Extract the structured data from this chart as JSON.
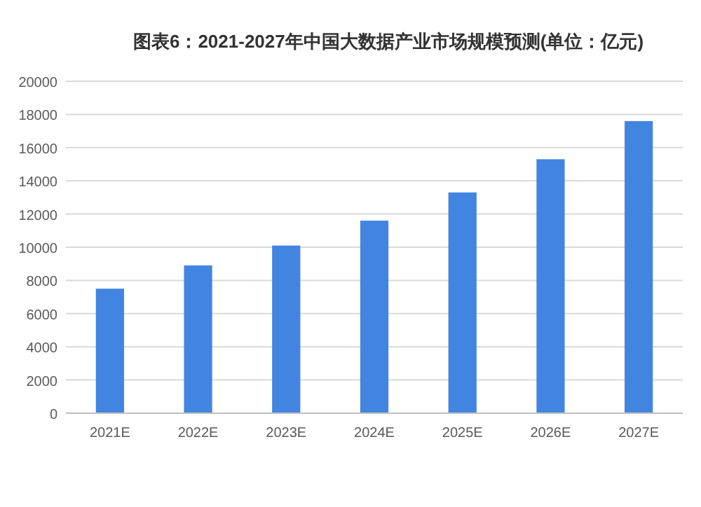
{
  "chart_data": {
    "type": "bar",
    "title": "图表6：2021-2027年中国大数据产业市场规模预测(单位：亿元)",
    "categories": [
      "2021E",
      "2022E",
      "2023E",
      "2024E",
      "2025E",
      "2026E",
      "2027E"
    ],
    "values": [
      7500,
      8900,
      10100,
      11600,
      13300,
      15300,
      17600
    ],
    "color": "#4285e0",
    "ylim": [
      0,
      20000
    ],
    "yticks": [
      0,
      2000,
      4000,
      6000,
      8000,
      10000,
      12000,
      14000,
      16000,
      18000,
      20000
    ],
    "grid": "y"
  }
}
